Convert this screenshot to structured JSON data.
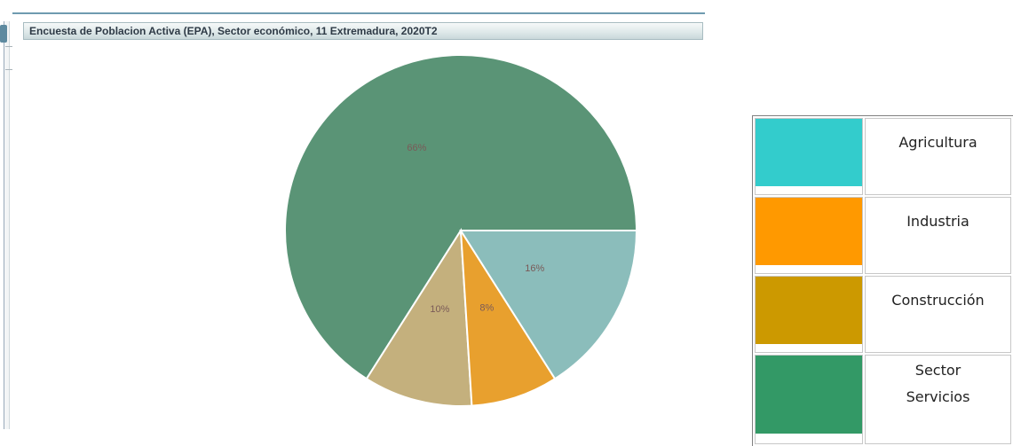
{
  "title": "Encuesta de Poblacion Activa (EPA), Sector económico, 11 Extremadura, 2020T2",
  "chart_data": {
    "type": "pie",
    "slices": [
      {
        "name": "Sector Servicios",
        "value": 66,
        "label": "66%",
        "color": "#5a9476"
      },
      {
        "name": "Construcción",
        "value": 10,
        "label": "10%",
        "color": "#c4b07d"
      },
      {
        "name": "Industria",
        "value": 8,
        "label": "8%",
        "color": "#e8a02e"
      },
      {
        "name": "Agricultura",
        "value": 16,
        "label": "16%",
        "color": "#8bbdbb"
      }
    ]
  },
  "legend": {
    "items": [
      {
        "label": "Agricultura",
        "color": "#33cccc"
      },
      {
        "label": "Industria",
        "color": "#ff9900"
      },
      {
        "label": "Construcción",
        "color": "#cc9900"
      },
      {
        "label": "Sector Servicios",
        "label_line1": "Sector",
        "label_line2": "Servicios",
        "color": "#339966"
      }
    ]
  }
}
